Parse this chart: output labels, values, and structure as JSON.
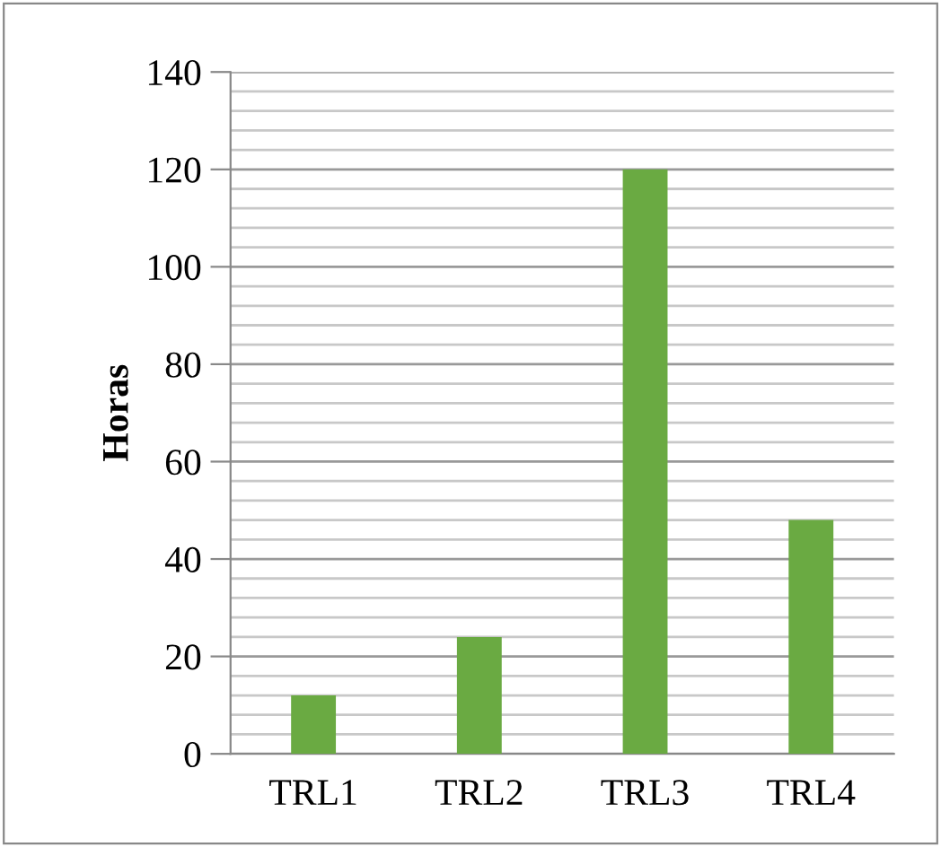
{
  "chart_data": {
    "type": "bar",
    "ylabel": "Horas",
    "categories": [
      "TRL1",
      "TRL2",
      "TRL3",
      "TRL4"
    ],
    "values": [
      12,
      24,
      120,
      48
    ],
    "color": "#6aaa42",
    "ylim": [
      0,
      140
    ],
    "yticks": [
      0,
      20,
      40,
      60,
      80,
      100,
      120,
      140
    ],
    "grid": "y"
  }
}
